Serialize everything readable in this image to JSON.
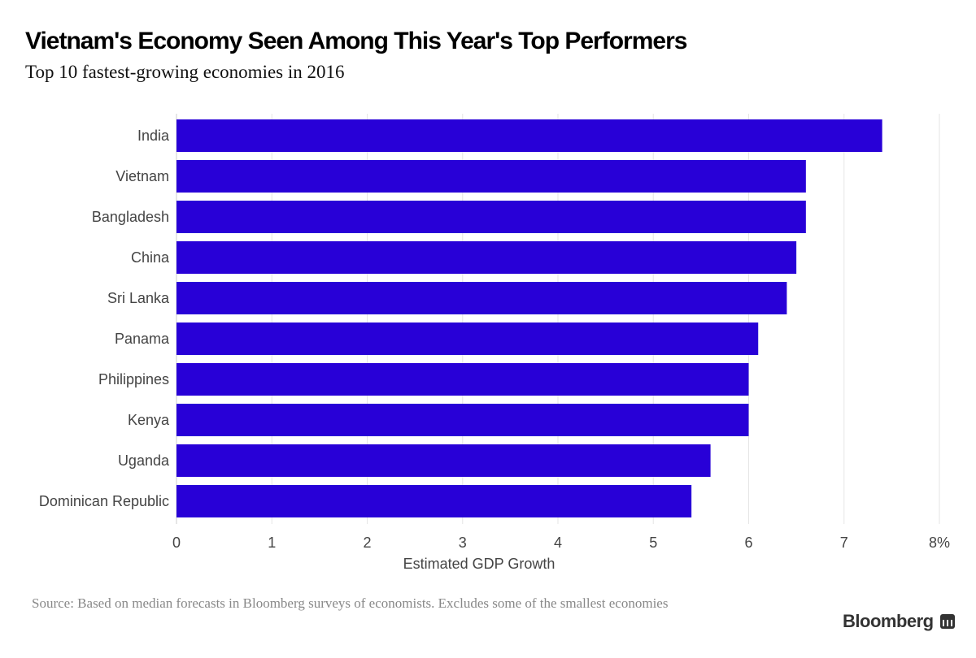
{
  "chart_data": {
    "type": "bar",
    "orientation": "horizontal",
    "title": "Vietnam's Economy Seen Among This Year's Top Performers",
    "subtitle": "Top 10 fastest-growing economies in 2016",
    "categories": [
      "India",
      "Vietnam",
      "Bangladesh",
      "China",
      "Sri Lanka",
      "Panama",
      "Philippines",
      "Kenya",
      "Uganda",
      "Dominican Republic"
    ],
    "values": [
      7.4,
      6.6,
      6.6,
      6.5,
      6.4,
      6.1,
      6.0,
      6.0,
      5.6,
      5.4
    ],
    "xlabel": "Estimated GDP Growth",
    "ylabel": "",
    "xlim": [
      0,
      8
    ],
    "xticks": [
      "0",
      "1",
      "2",
      "3",
      "4",
      "5",
      "6",
      "7",
      "8%"
    ],
    "grid": true,
    "bar_color": "#2800d7"
  },
  "source": "Source: Based on median forecasts in Bloomberg surveys of economists. Excludes some of the smallest economies",
  "logo": "Bloomberg"
}
